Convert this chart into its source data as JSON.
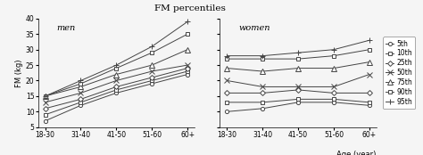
{
  "title": "FM percentiles",
  "xlabel": "Age (year)",
  "ylabel": "FM (kg)",
  "age_labels": [
    "18-30",
    "31-40",
    "41-50",
    "51-60",
    "60+"
  ],
  "ylim": [
    5,
    40
  ],
  "yticks": [
    5,
    10,
    15,
    20,
    25,
    30,
    35,
    40
  ],
  "men": {
    "5th": [
      7,
      12,
      16,
      19,
      22
    ],
    "10th": [
      9,
      13,
      17,
      20,
      23
    ],
    "25th": [
      11,
      14,
      18,
      21,
      24
    ],
    "50th": [
      13,
      16,
      20,
      23,
      25
    ],
    "75th": [
      15,
      18,
      22,
      25,
      30
    ],
    "90th": [
      15,
      19,
      24,
      29,
      35
    ],
    "95th": [
      15,
      20,
      25,
      31,
      39
    ]
  },
  "women": {
    "5th": [
      10,
      11,
      13,
      13,
      12
    ],
    "10th": [
      13,
      13,
      14,
      14,
      13
    ],
    "25th": [
      16,
      16,
      17,
      16,
      16
    ],
    "50th": [
      20,
      18,
      18,
      18,
      22
    ],
    "75th": [
      24,
      23,
      24,
      24,
      26
    ],
    "90th": [
      27,
      27,
      27,
      28,
      30
    ],
    "95th": [
      28,
      28,
      29,
      30,
      33
    ]
  },
  "percentile_markers": {
    "5th": {
      "marker": "o",
      "markersize": 3
    },
    "10th": {
      "marker": "s",
      "markersize": 3
    },
    "25th": {
      "marker": "D",
      "markersize": 3
    },
    "50th": {
      "marker": "x",
      "markersize": 4
    },
    "75th": {
      "marker": "^",
      "markersize": 4
    },
    "90th": {
      "marker": "s",
      "markersize": 3
    },
    "95th": {
      "marker": "+",
      "markersize": 5
    }
  },
  "line_color": "#444444",
  "background_color": "#f5f5f5",
  "title_fontsize": 7.5,
  "axis_fontsize": 6,
  "tick_fontsize": 5.5,
  "legend_fontsize": 5.5,
  "label_fontsize": 7
}
